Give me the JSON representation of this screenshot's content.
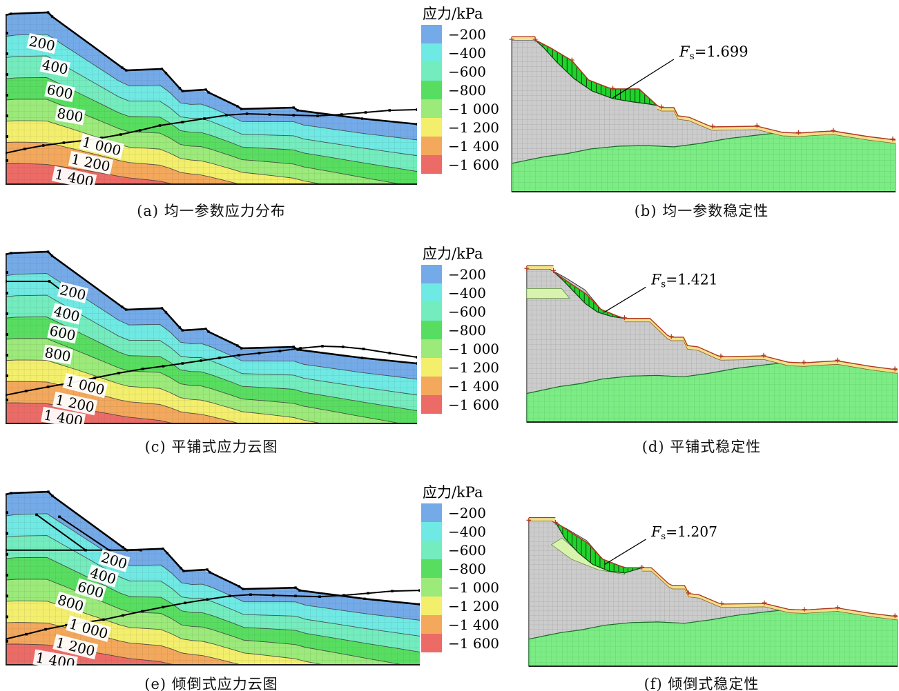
{
  "legend": {
    "title": "应力/kPa",
    "entries": [
      {
        "label": "−200",
        "color": "#74aae8"
      },
      {
        "label": "−400",
        "color": "#6fe9e3"
      },
      {
        "label": "−600",
        "color": "#73ecbe"
      },
      {
        "label": "−800",
        "color": "#57de60"
      },
      {
        "label": "−1 000",
        "color": "#9bea7a"
      },
      {
        "label": "−1 200",
        "color": "#f3ef6c"
      },
      {
        "label": "−1 400",
        "color": "#f3a85c"
      },
      {
        "label": "−1 600",
        "color": "#ed6b66"
      }
    ]
  },
  "contour_labels": [
    "200",
    "400",
    "600",
    "800",
    "1 000",
    "1 200",
    "1 400"
  ],
  "panels": {
    "a": {
      "caption": "(a) 均一参数应力分布"
    },
    "b": {
      "caption": "(b) 均一参数稳定性",
      "fs": {
        "symbol": "F",
        "sub": "s",
        "value": "=1.699"
      }
    },
    "c": {
      "caption": "(c) 平铺式应力云图"
    },
    "d": {
      "caption": "(d) 平铺式稳定性",
      "fs": {
        "symbol": "F",
        "sub": "s",
        "value": "=1.421"
      }
    },
    "e": {
      "caption": "(e) 倾倒式应力云图"
    },
    "f": {
      "caption": "(f) 倾倒式稳定性",
      "fs": {
        "symbol": "F",
        "sub": "s",
        "value": "=1.207"
      }
    }
  },
  "colors": {
    "soil": "#cccccc",
    "soil_mesh": "#878787",
    "bedrock": "#7dec85",
    "bedrock_mesh": "#38a852",
    "mass": "#1fd32b",
    "mass_hatch": "#073d07",
    "surface_band": "#f2e08a",
    "surface_line": "#b03a20",
    "pale_layer": "#d8f3ae",
    "contour_line": "#3a3a3a",
    "outline": "#000000"
  },
  "chart_data": [
    {
      "type": "heatmap",
      "subtype": "stress-contour",
      "panel": "a",
      "title": "(a) 均一参数应力分布",
      "legend_title": "应力/kPa",
      "legend_levels_kpa": [
        -200,
        -400,
        -600,
        -800,
        -1000,
        -1200,
        -1400,
        -1600
      ],
      "contour_line_labels_kpa": [
        200,
        400,
        600,
        800,
        1000,
        1200,
        1400
      ],
      "legend_position": "right",
      "grid": "fe-mesh"
    },
    {
      "type": "area",
      "subtype": "slope-stability-fem",
      "panel": "b",
      "title": "(b) 均一参数稳定性",
      "factor_of_safety": 1.699,
      "annotation": "Fs=1.699",
      "regions": [
        "soil (gray mesh)",
        "bedrock (green mesh)",
        "slip mass (green slices)",
        "surface weak band (yellow)"
      ]
    },
    {
      "type": "heatmap",
      "subtype": "stress-contour",
      "panel": "c",
      "title": "(c) 平铺式应力云图",
      "legend_title": "应力/kPa",
      "legend_levels_kpa": [
        -200,
        -400,
        -600,
        -800,
        -1000,
        -1200,
        -1400,
        -1600
      ],
      "contour_line_labels_kpa": [
        200,
        400,
        600,
        800,
        1000,
        1200,
        1400
      ],
      "legend_position": "right",
      "grid": "fe-mesh"
    },
    {
      "type": "area",
      "subtype": "slope-stability-fem",
      "panel": "d",
      "title": "(d) 平铺式稳定性",
      "factor_of_safety": 1.421,
      "annotation": "Fs=1.421",
      "regions": [
        "soil (gray mesh)",
        "bedrock (green mesh)",
        "slip mass (green slices)",
        "pale layered stratum",
        "surface weak band (yellow)"
      ]
    },
    {
      "type": "heatmap",
      "subtype": "stress-contour",
      "panel": "e",
      "title": "(e) 倾倒式应力云图",
      "legend_title": "应力/kPa",
      "legend_levels_kpa": [
        -200,
        -400,
        -600,
        -800,
        -1000,
        -1200,
        -1400,
        -1600
      ],
      "contour_line_labels_kpa": [
        200,
        400,
        600,
        800,
        1000,
        1200,
        1400
      ],
      "legend_position": "right",
      "grid": "fe-mesh"
    },
    {
      "type": "area",
      "subtype": "slope-stability-fem",
      "panel": "f",
      "title": "(f) 倾倒式稳定性",
      "factor_of_safety": 1.207,
      "annotation": "Fs=1.207",
      "regions": [
        "soil (gray mesh)",
        "bedrock (green mesh)",
        "slip mass (green slices)",
        "pale toppling wedge",
        "surface weak band (yellow)"
      ]
    }
  ]
}
